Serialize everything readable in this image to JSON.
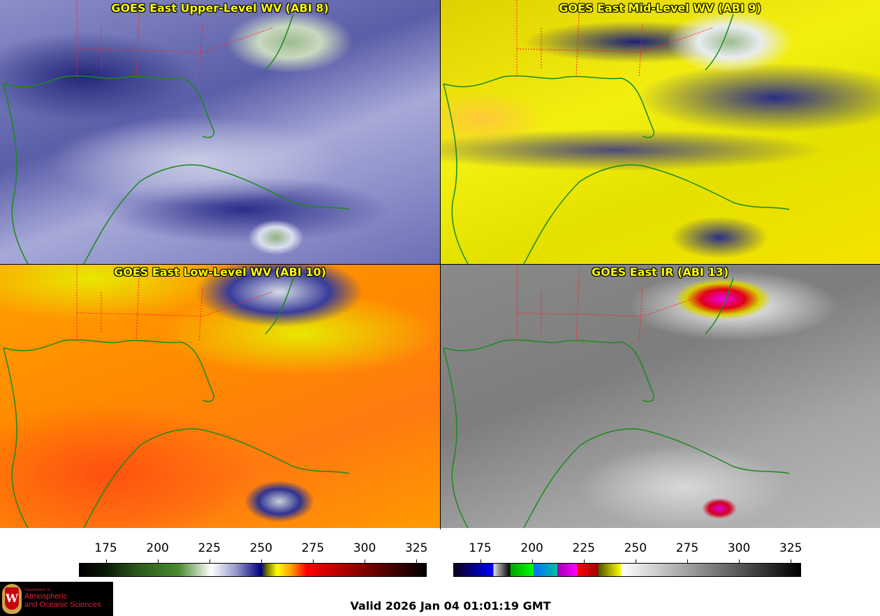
{
  "panels": [
    {
      "title": "GOES East Upper-Level WV (ABI 8)"
    },
    {
      "title": "GOES East Mid-Level WV (ABI 9)"
    },
    {
      "title": "GOES East Low-Level WV (ABI 10)"
    },
    {
      "title": "GOES East IR (ABI 13)"
    }
  ],
  "colorbars": [
    {
      "name": "water-vapor",
      "ticks": [
        "175",
        "200",
        "225",
        "250",
        "275",
        "300",
        "325"
      ],
      "range": [
        162,
        330
      ]
    },
    {
      "name": "infrared",
      "ticks": [
        "175",
        "200",
        "225",
        "250",
        "275",
        "300",
        "325"
      ],
      "range": [
        162,
        330
      ]
    }
  ],
  "logo": {
    "line1": "Department of",
    "line2": "Atmospheric",
    "line3": "and Oceanic Sciences",
    "seal": "W"
  },
  "valid_time": "Valid 2026 Jan 04 01:01:19 GMT",
  "colors": {
    "title": "#ffff00",
    "coastline": "#1a8a1a",
    "state_borders": "#ff2020"
  }
}
